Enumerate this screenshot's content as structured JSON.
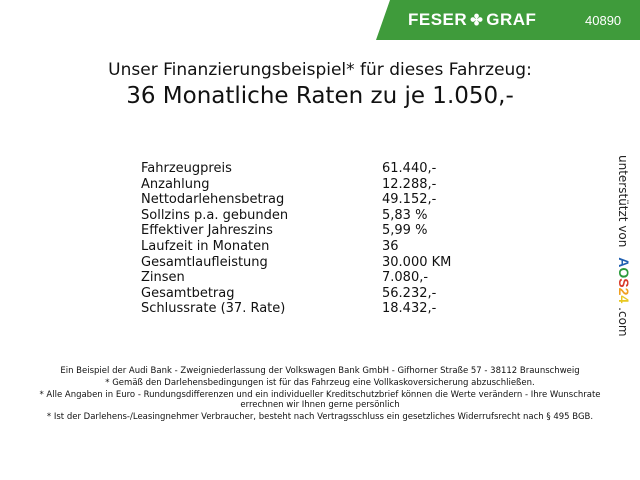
{
  "header": {
    "brand": "FESER",
    "brand2": "GRAF",
    "code": "40890",
    "brand_color": "#3f9b3b"
  },
  "title": {
    "line1": "Unser Finanzierungsbeispiel* für dieses Fahrzeug:",
    "line2": "36 Monatliche Raten zu je 1.050,-"
  },
  "table": [
    {
      "label": "Fahrzeugpreis",
      "value": "61.440,-"
    },
    {
      "label": "Anzahlung",
      "value": "12.288,-"
    },
    {
      "label": "Nettodarlehensbetrag",
      "value": "49.152,-"
    },
    {
      "label": "Sollzins p.a. gebunden",
      "value": "5,83 %"
    },
    {
      "label": "Effektiver Jahreszins",
      "value": "5,99 %"
    },
    {
      "label": "Laufzeit in Monaten",
      "value": "36"
    },
    {
      "label": "Gesamtlaufleistung",
      "value": "30.000 KM"
    },
    {
      "label": "Zinsen",
      "value": "7.080,-"
    },
    {
      "label": "Gesamtbetrag",
      "value": "56.232,-"
    },
    {
      "label": "Schlussrate (37. Rate)",
      "value": "18.432,-"
    }
  ],
  "side": {
    "text": "unterstützt von",
    "logo": "AOS24",
    "suffix": ".com"
  },
  "footer": [
    "Ein Beispiel der Audi Bank - Zweigniederlassung der Volkswagen Bank GmbH - Gifhorner Straße 57 - 38112 Braunschweig",
    "* Gemäß den Darlehensbedingungen ist für das Fahrzeug eine Vollkaskoversicherung abzuschließen.",
    "* Alle Angaben in Euro - Rundungsdifferenzen und ein individueller Kreditschutzbrief können die Werte verändern - Ihre Wunschrate errechnen wir Ihnen gerne persönlich",
    "* Ist der Darlehens-/Leasingnehmer Verbraucher, besteht nach Vertragsschluss ein gesetzliches Widerrufsrecht nach § 495 BGB."
  ]
}
